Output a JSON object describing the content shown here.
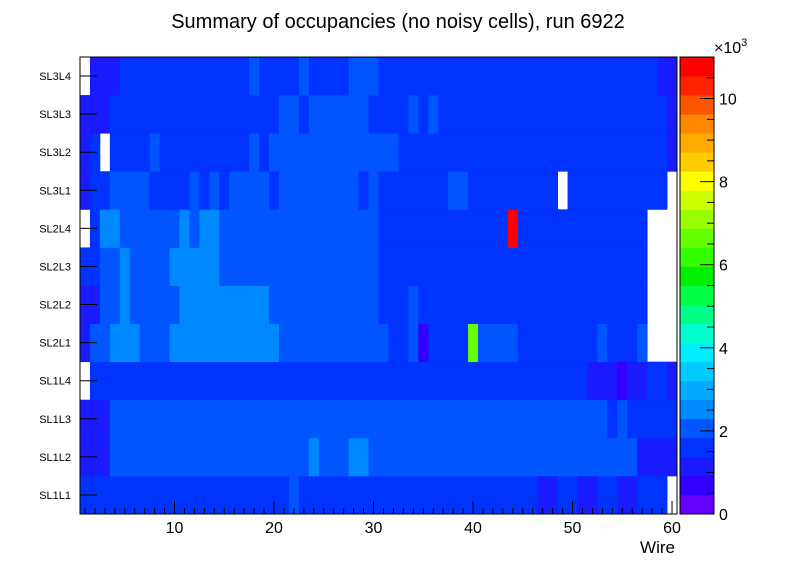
{
  "chart_data": {
    "type": "heatmap",
    "title": "Summary of occupancies (no noisy cells), run 6922",
    "xlabel": "Wire",
    "ylabel": "",
    "xlim": [
      0.5,
      60.5
    ],
    "x_ticks": [
      "10",
      "20",
      "30",
      "40",
      "50",
      "60"
    ],
    "y_categories": [
      "SL1L1",
      "SL1L2",
      "SL1L3",
      "SL1L4",
      "SL2L1",
      "SL2L2",
      "SL2L3",
      "SL2L4",
      "SL3L1",
      "SL3L2",
      "SL3L3",
      "SL3L4"
    ],
    "z_range": [
      0,
      11000
    ],
    "colorbar_ticks": [
      "0",
      "2",
      "4",
      "6",
      "8",
      "10"
    ],
    "colorbar_exponent": "×10",
    "colorbar_exponent_power": "3",
    "grid": false,
    "rows": [
      {
        "label": "SL1L1",
        "segments": [
          [
            1,
            21,
            1450
          ],
          [
            22,
            22,
            2200
          ],
          [
            23,
            46,
            1450
          ],
          [
            47,
            48,
            1000
          ],
          [
            49,
            50,
            1450
          ],
          [
            51,
            52,
            1000
          ],
          [
            53,
            54,
            1450
          ],
          [
            55,
            56,
            1000
          ],
          [
            57,
            59,
            1450
          ],
          [
            60,
            60,
            null
          ]
        ]
      },
      {
        "label": "SL1L2",
        "segments": [
          [
            1,
            3,
            1300
          ],
          [
            4,
            23,
            2000
          ],
          [
            24,
            24,
            2700
          ],
          [
            25,
            27,
            2000
          ],
          [
            28,
            29,
            2700
          ],
          [
            30,
            56,
            2000
          ],
          [
            57,
            60,
            1300
          ]
        ]
      },
      {
        "label": "SL1L3",
        "segments": [
          [
            1,
            3,
            1300
          ],
          [
            4,
            53,
            2000
          ],
          [
            54,
            54,
            1450
          ],
          [
            55,
            55,
            2000
          ],
          [
            56,
            60,
            1450
          ]
        ]
      },
      {
        "label": "SL1L4",
        "segments": [
          [
            1,
            1,
            null
          ],
          [
            2,
            51,
            1450
          ],
          [
            52,
            54,
            1000
          ],
          [
            55,
            55,
            700
          ],
          [
            56,
            57,
            1000
          ],
          [
            58,
            59,
            1450
          ],
          [
            60,
            60,
            1000
          ]
        ]
      },
      {
        "label": "SL2L1",
        "segments": [
          [
            1,
            1,
            1300
          ],
          [
            2,
            3,
            2000
          ],
          [
            4,
            6,
            2700
          ],
          [
            7,
            9,
            2000
          ],
          [
            10,
            20,
            2700
          ],
          [
            21,
            31,
            2000
          ],
          [
            32,
            33,
            1450
          ],
          [
            34,
            34,
            2000
          ],
          [
            35,
            35,
            900
          ],
          [
            36,
            39,
            1450
          ],
          [
            40,
            40,
            6700
          ],
          [
            41,
            44,
            2000
          ],
          [
            45,
            52,
            1450
          ],
          [
            53,
            53,
            2000
          ],
          [
            54,
            56,
            1450
          ],
          [
            57,
            57,
            2000
          ],
          [
            58,
            60,
            null
          ]
        ]
      },
      {
        "label": "SL2L2",
        "segments": [
          [
            1,
            2,
            1300
          ],
          [
            3,
            4,
            2000
          ],
          [
            5,
            5,
            2700
          ],
          [
            6,
            10,
            2000
          ],
          [
            11,
            19,
            2700
          ],
          [
            20,
            30,
            2000
          ],
          [
            31,
            33,
            1450
          ],
          [
            34,
            34,
            2000
          ],
          [
            35,
            57,
            1450
          ],
          [
            58,
            60,
            null
          ]
        ]
      },
      {
        "label": "SL2L3",
        "segments": [
          [
            1,
            2,
            1450
          ],
          [
            3,
            4,
            2000
          ],
          [
            5,
            5,
            2700
          ],
          [
            6,
            9,
            2000
          ],
          [
            10,
            14,
            2700
          ],
          [
            15,
            30,
            2000
          ],
          [
            31,
            57,
            1450
          ],
          [
            58,
            60,
            null
          ]
        ]
      },
      {
        "label": "SL2L4",
        "segments": [
          [
            1,
            1,
            null
          ],
          [
            2,
            2,
            1450
          ],
          [
            3,
            4,
            2700
          ],
          [
            5,
            10,
            2000
          ],
          [
            11,
            11,
            2700
          ],
          [
            12,
            12,
            2000
          ],
          [
            13,
            14,
            2700
          ],
          [
            15,
            30,
            2000
          ],
          [
            31,
            43,
            1450
          ],
          [
            44,
            44,
            10800
          ],
          [
            45,
            57,
            1450
          ],
          [
            58,
            60,
            null
          ]
        ]
      },
      {
        "label": "SL3L1",
        "segments": [
          [
            1,
            1,
            1000
          ],
          [
            2,
            3,
            1450
          ],
          [
            4,
            7,
            2000
          ],
          [
            8,
            11,
            1450
          ],
          [
            12,
            12,
            2000
          ],
          [
            13,
            13,
            1450
          ],
          [
            14,
            14,
            2000
          ],
          [
            15,
            15,
            1450
          ],
          [
            16,
            19,
            2000
          ],
          [
            20,
            20,
            1450
          ],
          [
            21,
            28,
            2000
          ],
          [
            29,
            29,
            1450
          ],
          [
            30,
            30,
            2000
          ],
          [
            31,
            37,
            1450
          ],
          [
            38,
            39,
            2000
          ],
          [
            40,
            48,
            1450
          ],
          [
            49,
            49,
            null
          ],
          [
            50,
            59,
            1450
          ],
          [
            60,
            60,
            null
          ]
        ]
      },
      {
        "label": "SL3L2",
        "segments": [
          [
            1,
            1,
            1000
          ],
          [
            2,
            2,
            1450
          ],
          [
            3,
            3,
            null
          ],
          [
            4,
            7,
            1450
          ],
          [
            8,
            8,
            2000
          ],
          [
            9,
            17,
            1450
          ],
          [
            18,
            18,
            2000
          ],
          [
            19,
            19,
            1450
          ],
          [
            20,
            21,
            2000
          ],
          [
            22,
            32,
            2000
          ],
          [
            33,
            59,
            1450
          ],
          [
            60,
            60,
            1000
          ]
        ]
      },
      {
        "label": "SL3L3",
        "segments": [
          [
            1,
            3,
            1000
          ],
          [
            4,
            20,
            1450
          ],
          [
            21,
            22,
            2000
          ],
          [
            23,
            23,
            1450
          ],
          [
            24,
            29,
            2000
          ],
          [
            30,
            33,
            1450
          ],
          [
            34,
            34,
            2000
          ],
          [
            35,
            35,
            1450
          ],
          [
            36,
            36,
            2000
          ],
          [
            37,
            59,
            1450
          ],
          [
            60,
            60,
            1000
          ]
        ]
      },
      {
        "label": "SL3L4",
        "segments": [
          [
            1,
            1,
            null
          ],
          [
            2,
            4,
            1000
          ],
          [
            5,
            17,
            1450
          ],
          [
            18,
            18,
            2000
          ],
          [
            19,
            22,
            1450
          ],
          [
            23,
            23,
            2000
          ],
          [
            24,
            27,
            1450
          ],
          [
            28,
            30,
            2000
          ],
          [
            31,
            58,
            1450
          ],
          [
            59,
            60,
            1000
          ]
        ]
      }
    ]
  }
}
